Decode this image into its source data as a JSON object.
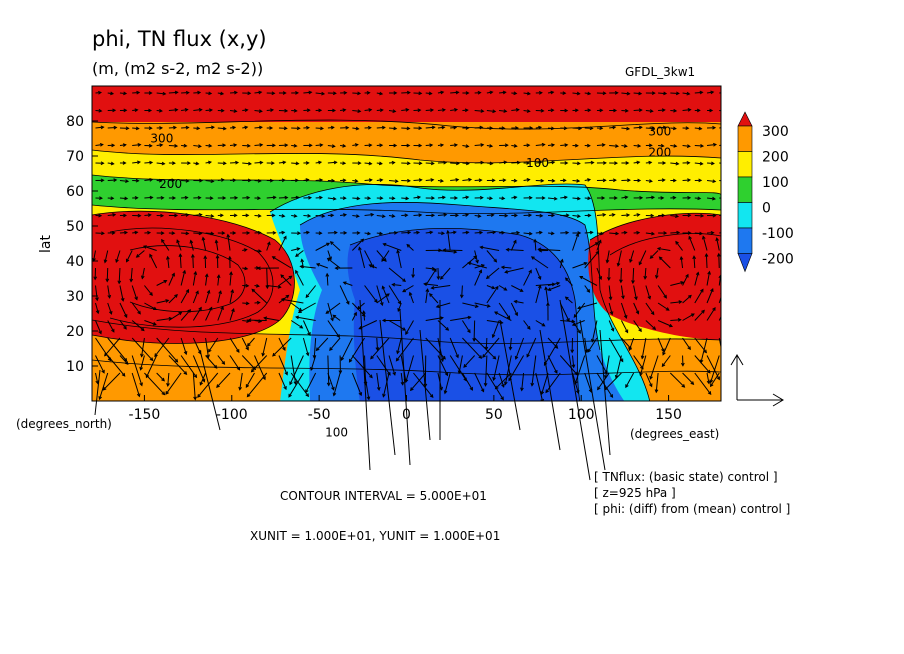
{
  "chart_data": {
    "type": "contour_vector_map",
    "title": "phi, TN flux (x,y)",
    "subtitle": "(m, (m2 s-2, m2 s-2))",
    "model_label": "GFDL_3kw1",
    "ylabel": "lat",
    "x_unit_label": "(degrees_east)",
    "y_unit_label": "(degrees_north)",
    "xlim": [
      -180,
      180
    ],
    "ylim": [
      0,
      90
    ],
    "x_ticks": [
      -150,
      -100,
      -50,
      0,
      50,
      100,
      150
    ],
    "y_ticks": [
      10,
      20,
      30,
      40,
      50,
      60,
      70,
      80
    ],
    "colorbar": {
      "labels": [
        "300",
        "200",
        "100",
        "0",
        "-100",
        "-200"
      ],
      "colors": [
        "#e11010",
        "#ff9900",
        "#ffee00",
        "#2fd02f",
        "#12e6f0",
        "#1e78f0",
        "#1a50e6"
      ]
    },
    "contour_labels": [
      {
        "text": "300",
        "lon": -140,
        "lat": 75
      },
      {
        "text": "200",
        "lon": -135,
        "lat": 62
      },
      {
        "text": "100",
        "lon": 75,
        "lat": 68
      },
      {
        "text": "300",
        "lon": 145,
        "lat": 77
      },
      {
        "text": "200",
        "lon": 145,
        "lat": 71
      },
      {
        "text": "100",
        "lon": -40,
        "lat": -9
      }
    ],
    "footer_lines": [
      "CONTOUR INTERVAL = 5.000E+01",
      "XUNIT = 1.000E+01, YUNIT = 1.000E+01"
    ],
    "info_lines": [
      "[ TNflux: (basic state) control ]",
      "[ z=925 hPa ]",
      "[ phi: (diff) from (mean) control ]"
    ],
    "fields": [
      {
        "name": "phi",
        "level": "925 hPa"
      },
      {
        "name": "TN flux",
        "components": [
          "x",
          "y"
        ]
      }
    ]
  }
}
